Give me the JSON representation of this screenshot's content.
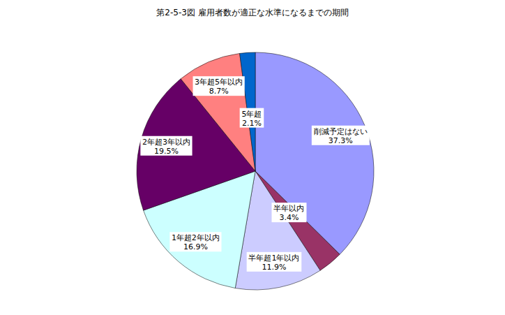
{
  "chart_data": {
    "type": "pie",
    "title": "第2-5-3図  雇用者数が適正な水準になるまでの期間",
    "categories": [
      "削減予定はない",
      "半年以内",
      "半年超1年以内",
      "1年超2年以内",
      "2年超3年以内",
      "3年超5年以内",
      "5年超"
    ],
    "values": [
      37.3,
      3.4,
      11.9,
      16.9,
      19.5,
      8.7,
      2.1
    ],
    "value_labels": [
      "37.3%",
      "3.4%",
      "11.9%",
      "16.9%",
      "19.5%",
      "8.7%",
      "2.1%"
    ],
    "colors": [
      "#9999ff",
      "#993366",
      "#ccccff",
      "#ccffff",
      "#660066",
      "#ff8080",
      "#0066cc"
    ],
    "data_labels": true
  }
}
